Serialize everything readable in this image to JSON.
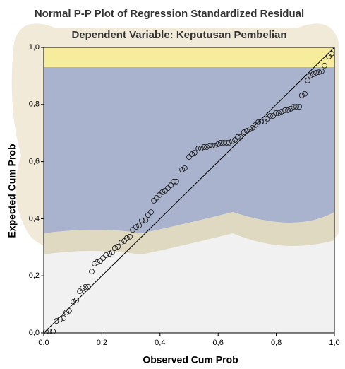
{
  "chart_data": {
    "type": "scatter",
    "title": "Normal P-P Plot of Regression Standardized Residual",
    "subtitle": "Dependent Variable: Keputusan Pembelian",
    "x_label": "Observed Cum Prob",
    "y_label": "Expected Cum Prob",
    "xlim": [
      0,
      1
    ],
    "ylim": [
      0,
      1
    ],
    "xticks": [
      {
        "value": 0,
        "label": "0,0"
      },
      {
        "value": 0.2,
        "label": "0,2"
      },
      {
        "value": 0.4,
        "label": "0,4"
      },
      {
        "value": 0.6,
        "label": "0,6"
      },
      {
        "value": 0.8,
        "label": "0,8"
      },
      {
        "value": 1,
        "label": "1,0"
      }
    ],
    "yticks": [
      {
        "value": 0,
        "label": "0,0"
      },
      {
        "value": 0.2,
        "label": "0,2"
      },
      {
        "value": 0.4,
        "label": "0,4"
      },
      {
        "value": 0.6,
        "label": "0,6"
      },
      {
        "value": 0.8,
        "label": "0,8"
      },
      {
        "value": 1,
        "label": "1,0"
      }
    ],
    "grid": false,
    "x": [
      0.007,
      0.019,
      0.032,
      0.044,
      0.056,
      0.068,
      0.078,
      0.087,
      0.102,
      0.112,
      0.124,
      0.133,
      0.143,
      0.153,
      0.165,
      0.175,
      0.184,
      0.194,
      0.204,
      0.214,
      0.226,
      0.235,
      0.245,
      0.255,
      0.267,
      0.277,
      0.286,
      0.296,
      0.306,
      0.318,
      0.328,
      0.337,
      0.35,
      0.359,
      0.369,
      0.379,
      0.388,
      0.398,
      0.408,
      0.417,
      0.427,
      0.437,
      0.447,
      0.456,
      0.476,
      0.485,
      0.5,
      0.51,
      0.519,
      0.532,
      0.541,
      0.551,
      0.561,
      0.57,
      0.58,
      0.59,
      0.6,
      0.609,
      0.619,
      0.629,
      0.638,
      0.648,
      0.658,
      0.667,
      0.677,
      0.689,
      0.699,
      0.709,
      0.718,
      0.728,
      0.738,
      0.748,
      0.76,
      0.769,
      0.779,
      0.789,
      0.799,
      0.808,
      0.818,
      0.83,
      0.84,
      0.85,
      0.859,
      0.869,
      0.879,
      0.888,
      0.898,
      0.908,
      0.917,
      0.927,
      0.937,
      0.947,
      0.956,
      0.966,
      0.981,
      0.99
    ],
    "values": [
      0.005,
      0.005,
      0.005,
      0.042,
      0.047,
      0.052,
      0.072,
      0.077,
      0.109,
      0.114,
      0.146,
      0.156,
      0.161,
      0.161,
      0.215,
      0.243,
      0.248,
      0.252,
      0.262,
      0.272,
      0.277,
      0.282,
      0.297,
      0.302,
      0.317,
      0.322,
      0.332,
      0.337,
      0.361,
      0.371,
      0.376,
      0.394,
      0.394,
      0.413,
      0.423,
      0.463,
      0.473,
      0.483,
      0.493,
      0.498,
      0.507,
      0.517,
      0.53,
      0.53,
      0.572,
      0.577,
      0.616,
      0.626,
      0.631,
      0.646,
      0.646,
      0.651,
      0.651,
      0.656,
      0.656,
      0.656,
      0.661,
      0.666,
      0.666,
      0.666,
      0.666,
      0.671,
      0.676,
      0.686,
      0.686,
      0.703,
      0.708,
      0.713,
      0.718,
      0.728,
      0.738,
      0.74,
      0.74,
      0.75,
      0.76,
      0.76,
      0.77,
      0.77,
      0.775,
      0.78,
      0.78,
      0.785,
      0.792,
      0.792,
      0.792,
      0.832,
      0.837,
      0.884,
      0.901,
      0.906,
      0.911,
      0.913,
      0.916,
      0.936,
      0.968,
      0.978
    ]
  }
}
